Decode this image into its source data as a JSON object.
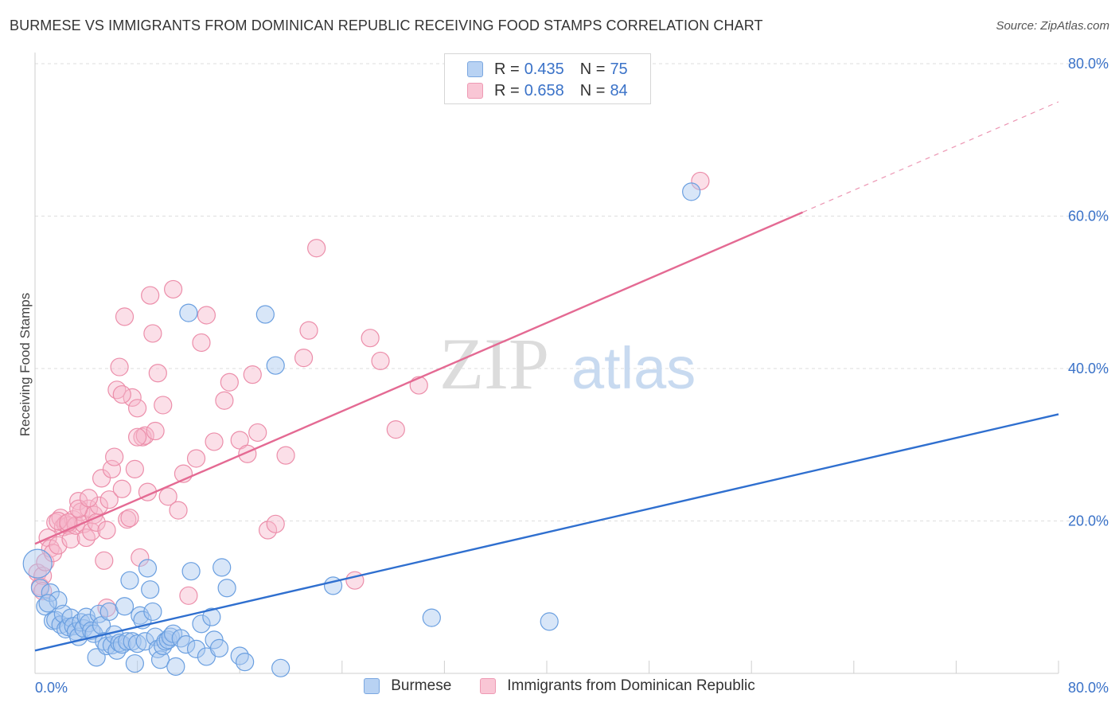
{
  "header": {
    "title": "BURMESE VS IMMIGRANTS FROM DOMINICAN REPUBLIC RECEIVING FOOD STAMPS CORRELATION CHART",
    "source": "Source: ZipAtlas.com"
  },
  "watermark": {
    "zip": "ZIP",
    "atlas": "atlas"
  },
  "legend_top": {
    "r_label": "R =",
    "n_label": "N =",
    "burmese": {
      "r": "0.435",
      "n": "75"
    },
    "dominican": {
      "r": "0.658",
      "n": "84"
    }
  },
  "legend_bottom": {
    "burmese": "Burmese",
    "dominican": "Immigrants from Dominican Republic"
  },
  "chart_data": {
    "type": "scatter",
    "title": "BURMESE VS IMMIGRANTS FROM DOMINICAN REPUBLIC RECEIVING FOOD STAMPS CORRELATION CHART",
    "xlabel": "",
    "ylabel": "Receiving Food Stamps",
    "xlim": [
      0,
      80
    ],
    "ylim": [
      0,
      80
    ],
    "x_tick_labels": [
      "0.0%",
      "80.0%"
    ],
    "y_ticks": [
      20,
      40,
      60,
      80
    ],
    "y_tick_labels": [
      "20.0%",
      "40.0%",
      "60.0%",
      "80.0%"
    ],
    "grid": true,
    "legend_position": "top-center",
    "colors": {
      "burmese_fill": "#a9c8f0",
      "burmese_stroke": "#6a9fe0",
      "burmese_line": "#2f6fcf",
      "dominican_fill": "#f7b8cb",
      "dominican_stroke": "#ec8eaa",
      "dominican_line": "#e46a93",
      "tick_label": "#3a72c8"
    },
    "series": [
      {
        "name": "Burmese",
        "r": 0.435,
        "n": 75,
        "trend": {
          "x1": 0,
          "y1": 3.0,
          "x2": 80,
          "y2": 34.0
        },
        "points": [
          [
            0.2,
            14.4
          ],
          [
            0.4,
            11.2
          ],
          [
            0.8,
            8.8
          ],
          [
            1.2,
            10.6
          ],
          [
            1.4,
            6.9
          ],
          [
            1.6,
            7.0
          ],
          [
            1.8,
            9.6
          ],
          [
            2.0,
            6.4
          ],
          [
            2.2,
            7.8
          ],
          [
            2.4,
            5.8
          ],
          [
            2.6,
            6.1
          ],
          [
            2.8,
            7.3
          ],
          [
            3.0,
            6.2
          ],
          [
            3.2,
            5.5
          ],
          [
            3.4,
            4.8
          ],
          [
            3.6,
            6.7
          ],
          [
            3.8,
            5.9
          ],
          [
            4.0,
            7.4
          ],
          [
            4.2,
            6.6
          ],
          [
            4.4,
            5.6
          ],
          [
            4.6,
            5.2
          ],
          [
            4.8,
            2.1
          ],
          [
            5.0,
            7.8
          ],
          [
            5.2,
            6.3
          ],
          [
            5.4,
            4.2
          ],
          [
            5.6,
            3.6
          ],
          [
            5.8,
            8.1
          ],
          [
            6.0,
            3.7
          ],
          [
            6.2,
            5.1
          ],
          [
            6.4,
            3.0
          ],
          [
            6.6,
            4.0
          ],
          [
            6.8,
            3.8
          ],
          [
            7.0,
            8.8
          ],
          [
            7.2,
            4.2
          ],
          [
            7.4,
            12.2
          ],
          [
            7.6,
            4.2
          ],
          [
            7.8,
            1.3
          ],
          [
            8.0,
            3.9
          ],
          [
            8.2,
            7.6
          ],
          [
            8.4,
            7.0
          ],
          [
            8.6,
            4.2
          ],
          [
            8.8,
            13.8
          ],
          [
            9.0,
            11.0
          ],
          [
            9.2,
            8.1
          ],
          [
            9.4,
            4.8
          ],
          [
            9.6,
            3.2
          ],
          [
            9.8,
            1.8
          ],
          [
            10.0,
            3.6
          ],
          [
            10.2,
            4.2
          ],
          [
            10.4,
            4.4
          ],
          [
            10.6,
            4.8
          ],
          [
            10.8,
            5.2
          ],
          [
            11.0,
            0.9
          ],
          [
            11.4,
            4.6
          ],
          [
            11.8,
            3.8
          ],
          [
            12.0,
            47.3
          ],
          [
            12.2,
            13.4
          ],
          [
            12.6,
            3.2
          ],
          [
            13.0,
            6.5
          ],
          [
            13.4,
            2.2
          ],
          [
            13.8,
            7.4
          ],
          [
            14.0,
            4.4
          ],
          [
            14.4,
            3.3
          ],
          [
            14.6,
            13.9
          ],
          [
            15.0,
            11.2
          ],
          [
            16.0,
            2.3
          ],
          [
            16.4,
            1.5
          ],
          [
            18.0,
            47.1
          ],
          [
            18.8,
            40.4
          ],
          [
            19.2,
            0.7
          ],
          [
            23.3,
            11.5
          ],
          [
            31.0,
            7.3
          ],
          [
            40.2,
            6.8
          ],
          [
            51.3,
            63.2
          ],
          [
            1.0,
            9.2
          ]
        ],
        "point_sizes": [
          18,
          11,
          11,
          11,
          11,
          11,
          11,
          11,
          11,
          11,
          11,
          11,
          11,
          11,
          11,
          11,
          11,
          11,
          11,
          11,
          11,
          11,
          11,
          11,
          11,
          11,
          11,
          11,
          11,
          11,
          11,
          11,
          11,
          11,
          11,
          11,
          11,
          11,
          11,
          11,
          11,
          11,
          11,
          11,
          11,
          11,
          11,
          11,
          11,
          11,
          11,
          11,
          11,
          11,
          11,
          11,
          11,
          11,
          11,
          11,
          11,
          11,
          11,
          11,
          11,
          11,
          11,
          11,
          11,
          11,
          11,
          11,
          11,
          11,
          11
        ]
      },
      {
        "name": "Immigrants from Dominican Republic",
        "r": 0.658,
        "n": 84,
        "trend": {
          "x1": 0,
          "y1": 17.0,
          "x2": 60,
          "y2": 60.5
        },
        "trend_extension": {
          "x1": 60,
          "y1": 60.5,
          "x2": 80,
          "y2": 75.0
        },
        "points": [
          [
            0.2,
            13.2
          ],
          [
            0.4,
            11.4
          ],
          [
            0.6,
            12.8
          ],
          [
            0.8,
            14.6
          ],
          [
            1.0,
            17.8
          ],
          [
            1.2,
            16.4
          ],
          [
            1.4,
            15.8
          ],
          [
            1.6,
            19.8
          ],
          [
            1.8,
            16.8
          ],
          [
            2.0,
            20.4
          ],
          [
            2.2,
            19.2
          ],
          [
            2.4,
            19.6
          ],
          [
            2.6,
            19.4
          ],
          [
            2.8,
            17.6
          ],
          [
            3.0,
            20.2
          ],
          [
            3.2,
            19.4
          ],
          [
            3.4,
            22.6
          ],
          [
            3.6,
            21.2
          ],
          [
            3.8,
            19.6
          ],
          [
            4.0,
            17.8
          ],
          [
            4.2,
            21.6
          ],
          [
            4.4,
            18.6
          ],
          [
            4.6,
            20.8
          ],
          [
            4.8,
            19.8
          ],
          [
            5.0,
            22.0
          ],
          [
            5.2,
            25.6
          ],
          [
            5.4,
            14.8
          ],
          [
            5.6,
            18.8
          ],
          [
            5.8,
            22.8
          ],
          [
            6.0,
            26.8
          ],
          [
            6.2,
            28.4
          ],
          [
            6.4,
            37.2
          ],
          [
            6.6,
            40.2
          ],
          [
            6.8,
            24.2
          ],
          [
            7.0,
            46.8
          ],
          [
            7.2,
            20.2
          ],
          [
            7.4,
            20.4
          ],
          [
            7.6,
            36.2
          ],
          [
            7.8,
            26.8
          ],
          [
            8.0,
            34.8
          ],
          [
            8.2,
            15.2
          ],
          [
            8.4,
            31.0
          ],
          [
            8.6,
            31.2
          ],
          [
            8.8,
            23.8
          ],
          [
            9.0,
            49.6
          ],
          [
            9.2,
            44.6
          ],
          [
            9.4,
            31.8
          ],
          [
            9.6,
            39.4
          ],
          [
            10.0,
            35.2
          ],
          [
            10.4,
            23.2
          ],
          [
            10.8,
            50.4
          ],
          [
            11.2,
            21.4
          ],
          [
            11.6,
            26.2
          ],
          [
            12.0,
            10.2
          ],
          [
            12.6,
            28.2
          ],
          [
            13.0,
            43.4
          ],
          [
            13.4,
            47.0
          ],
          [
            14.0,
            30.4
          ],
          [
            14.8,
            35.8
          ],
          [
            15.2,
            38.2
          ],
          [
            16.0,
            30.6
          ],
          [
            16.6,
            28.8
          ],
          [
            17.0,
            39.2
          ],
          [
            17.4,
            31.6
          ],
          [
            18.2,
            18.8
          ],
          [
            18.8,
            19.6
          ],
          [
            19.6,
            28.6
          ],
          [
            21.0,
            41.4
          ],
          [
            21.4,
            45.0
          ],
          [
            22.0,
            55.8
          ],
          [
            25.0,
            12.2
          ],
          [
            26.2,
            44.0
          ],
          [
            27.0,
            41.0
          ],
          [
            28.2,
            32.0
          ],
          [
            30.0,
            37.8
          ],
          [
            52.0,
            64.6
          ],
          [
            0.6,
            10.8
          ],
          [
            1.8,
            20.0
          ],
          [
            2.6,
            19.8
          ],
          [
            3.4,
            21.6
          ],
          [
            4.2,
            23.0
          ],
          [
            5.6,
            8.6
          ],
          [
            6.8,
            36.6
          ],
          [
            8.0,
            31.0
          ]
        ],
        "point_sizes": [
          11,
          11,
          11,
          11,
          11,
          11,
          11,
          11,
          11,
          11,
          11,
          11,
          11,
          11,
          11,
          11,
          11,
          11,
          11,
          11,
          11,
          11,
          11,
          11,
          11,
          11,
          11,
          11,
          11,
          11,
          11,
          11,
          11,
          11,
          11,
          11,
          11,
          11,
          11,
          11,
          11,
          11,
          11,
          11,
          11,
          11,
          11,
          11,
          11,
          11,
          11,
          11,
          11,
          11,
          11,
          11,
          11,
          11,
          11,
          11,
          11,
          11,
          11,
          11,
          11,
          11,
          11,
          11,
          11,
          11,
          11,
          11,
          11,
          11,
          11,
          11,
          11,
          11,
          11,
          11,
          11,
          11,
          11,
          11
        ]
      }
    ]
  }
}
